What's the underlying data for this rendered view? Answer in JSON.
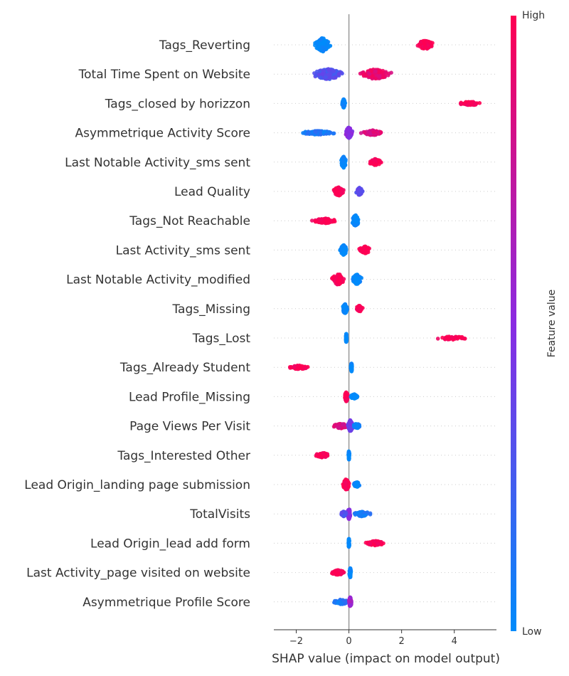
{
  "chart_data": {
    "type": "scatter",
    "subtype": "shap-beeswarm",
    "xlabel": "SHAP value (impact on model output)",
    "xlim": [
      -2.85,
      5.6
    ],
    "xticks": [
      -2,
      0,
      2,
      4
    ],
    "xtick_labels": [
      "−2",
      "0",
      "2",
      "4"
    ],
    "colorbar": {
      "label": "Feature value",
      "high_label": "High",
      "low_label": "Low",
      "high_color": "#ff0052",
      "low_color": "#008bfb"
    },
    "features": [
      {
        "name": "Tags_Reverting",
        "clusters": [
          {
            "center": -1.0,
            "spread": 0.4,
            "fv": 0.0,
            "n": 140,
            "width": 0.55
          },
          {
            "center": 2.9,
            "spread": 0.55,
            "fv": 1.0,
            "n": 80,
            "width": 0.35
          }
        ]
      },
      {
        "name": "Total Time Spent on Website",
        "clusters": [
          {
            "center": -0.8,
            "spread": 0.8,
            "fv": 0.3,
            "n": 150,
            "width": 0.45
          },
          {
            "center": 1.0,
            "spread": 0.85,
            "fv": 0.9,
            "n": 140,
            "width": 0.4
          }
        ]
      },
      {
        "name": "Tags_closed by horizzon",
        "clusters": [
          {
            "center": -0.2,
            "spread": 0.08,
            "fv": 0.0,
            "n": 80,
            "width": 0.35
          },
          {
            "center": 4.6,
            "spread": 0.65,
            "fv": 1.0,
            "n": 60,
            "width": 0.15
          }
        ]
      },
      {
        "name": "Asymmetrique Activity Score",
        "clusters": [
          {
            "center": -1.2,
            "spread": 1.1,
            "fv": 0.1,
            "n": 100,
            "width": 0.15
          },
          {
            "center": 0.0,
            "spread": 0.2,
            "fv": 0.5,
            "n": 120,
            "width": 0.45
          },
          {
            "center": 0.9,
            "spread": 0.6,
            "fv": 0.85,
            "n": 90,
            "width": 0.2
          }
        ]
      },
      {
        "name": "Last Notable Activity_sms sent",
        "clusters": [
          {
            "center": -0.2,
            "spread": 0.15,
            "fv": 0.0,
            "n": 120,
            "width": 0.45
          },
          {
            "center": 1.0,
            "spread": 0.4,
            "fv": 1.0,
            "n": 70,
            "width": 0.25
          }
        ]
      },
      {
        "name": "Lead Quality",
        "clusters": [
          {
            "center": -0.4,
            "spread": 0.3,
            "fv": 1.0,
            "n": 90,
            "width": 0.35
          },
          {
            "center": 0.4,
            "spread": 0.2,
            "fv": 0.35,
            "n": 80,
            "width": 0.3
          }
        ]
      },
      {
        "name": "Tags_Not Reachable",
        "clusters": [
          {
            "center": -0.9,
            "spread": 0.7,
            "fv": 1.0,
            "n": 100,
            "width": 0.2
          },
          {
            "center": 0.25,
            "spread": 0.2,
            "fv": 0.0,
            "n": 120,
            "width": 0.45
          }
        ]
      },
      {
        "name": "Last Activity_sms sent",
        "clusters": [
          {
            "center": -0.2,
            "spread": 0.2,
            "fv": 0.0,
            "n": 110,
            "width": 0.4
          },
          {
            "center": 0.6,
            "spread": 0.35,
            "fv": 1.0,
            "n": 80,
            "width": 0.3
          }
        ]
      },
      {
        "name": "Last Notable Activity_modified",
        "clusters": [
          {
            "center": -0.4,
            "spread": 0.35,
            "fv": 1.0,
            "n": 90,
            "width": 0.45
          },
          {
            "center": 0.3,
            "spread": 0.25,
            "fv": 0.0,
            "n": 100,
            "width": 0.4
          }
        ]
      },
      {
        "name": "Tags_Missing",
        "clusters": [
          {
            "center": -0.15,
            "spread": 0.15,
            "fv": 0.0,
            "n": 100,
            "width": 0.4
          },
          {
            "center": 0.4,
            "spread": 0.2,
            "fv": 1.0,
            "n": 60,
            "width": 0.25
          }
        ]
      },
      {
        "name": "Tags_Lost",
        "clusters": [
          {
            "center": -0.1,
            "spread": 0.03,
            "fv": 0.0,
            "n": 60,
            "width": 0.35
          },
          {
            "center": 3.9,
            "spread": 0.8,
            "fv": 1.0,
            "n": 40,
            "width": 0.15
          }
        ]
      },
      {
        "name": "Tags_Already Student",
        "clusters": [
          {
            "center": -1.9,
            "spread": 0.6,
            "fv": 1.0,
            "n": 70,
            "width": 0.15
          },
          {
            "center": 0.1,
            "spread": 0.04,
            "fv": 0.0,
            "n": 60,
            "width": 0.35
          }
        ]
      },
      {
        "name": "Lead Profile_Missing",
        "clusters": [
          {
            "center": -0.1,
            "spread": 0.1,
            "fv": 1.0,
            "n": 90,
            "width": 0.4
          },
          {
            "center": 0.2,
            "spread": 0.2,
            "fv": 0.0,
            "n": 70,
            "width": 0.2
          }
        ]
      },
      {
        "name": "Page Views Per Visit",
        "clusters": [
          {
            "center": -0.3,
            "spread": 0.4,
            "fv": 0.85,
            "n": 80,
            "width": 0.2
          },
          {
            "center": 0.05,
            "spread": 0.15,
            "fv": 0.4,
            "n": 100,
            "width": 0.45
          },
          {
            "center": 0.3,
            "spread": 0.2,
            "fv": 0.05,
            "n": 60,
            "width": 0.2
          }
        ]
      },
      {
        "name": "Tags_Interested Other",
        "clusters": [
          {
            "center": -1.0,
            "spread": 0.4,
            "fv": 1.0,
            "n": 80,
            "width": 0.2
          },
          {
            "center": 0.0,
            "spread": 0.03,
            "fv": 0.0,
            "n": 60,
            "width": 0.4
          }
        ]
      },
      {
        "name": "Lead Origin_landing page submission",
        "clusters": [
          {
            "center": -0.1,
            "spread": 0.2,
            "fv": 1.0,
            "n": 90,
            "width": 0.45
          },
          {
            "center": 0.3,
            "spread": 0.2,
            "fv": 0.0,
            "n": 60,
            "width": 0.2
          }
        ]
      },
      {
        "name": "TotalVisits",
        "clusters": [
          {
            "center": 0.0,
            "spread": 0.08,
            "fv": 0.5,
            "n": 100,
            "width": 0.45
          },
          {
            "center": -0.2,
            "spread": 0.2,
            "fv": 0.3,
            "n": 40,
            "width": 0.2
          },
          {
            "center": 0.5,
            "spread": 0.5,
            "fv": 0.1,
            "n": 50,
            "width": 0.2
          }
        ]
      },
      {
        "name": "Lead Origin_lead add form",
        "clusters": [
          {
            "center": 0.0,
            "spread": 0.03,
            "fv": 0.0,
            "n": 60,
            "width": 0.35
          },
          {
            "center": 1.0,
            "spread": 0.65,
            "fv": 1.0,
            "n": 90,
            "width": 0.18
          }
        ]
      },
      {
        "name": "Last Activity_page visited on website",
        "clusters": [
          {
            "center": -0.4,
            "spread": 0.4,
            "fv": 1.0,
            "n": 80,
            "width": 0.2
          },
          {
            "center": 0.05,
            "spread": 0.05,
            "fv": 0.0,
            "n": 70,
            "width": 0.4
          }
        ]
      },
      {
        "name": "Asymmetrique Profile Score",
        "clusters": [
          {
            "center": -0.3,
            "spread": 0.5,
            "fv": 0.1,
            "n": 60,
            "width": 0.2
          },
          {
            "center": 0.05,
            "spread": 0.08,
            "fv": 0.6,
            "n": 80,
            "width": 0.4
          }
        ]
      }
    ]
  }
}
